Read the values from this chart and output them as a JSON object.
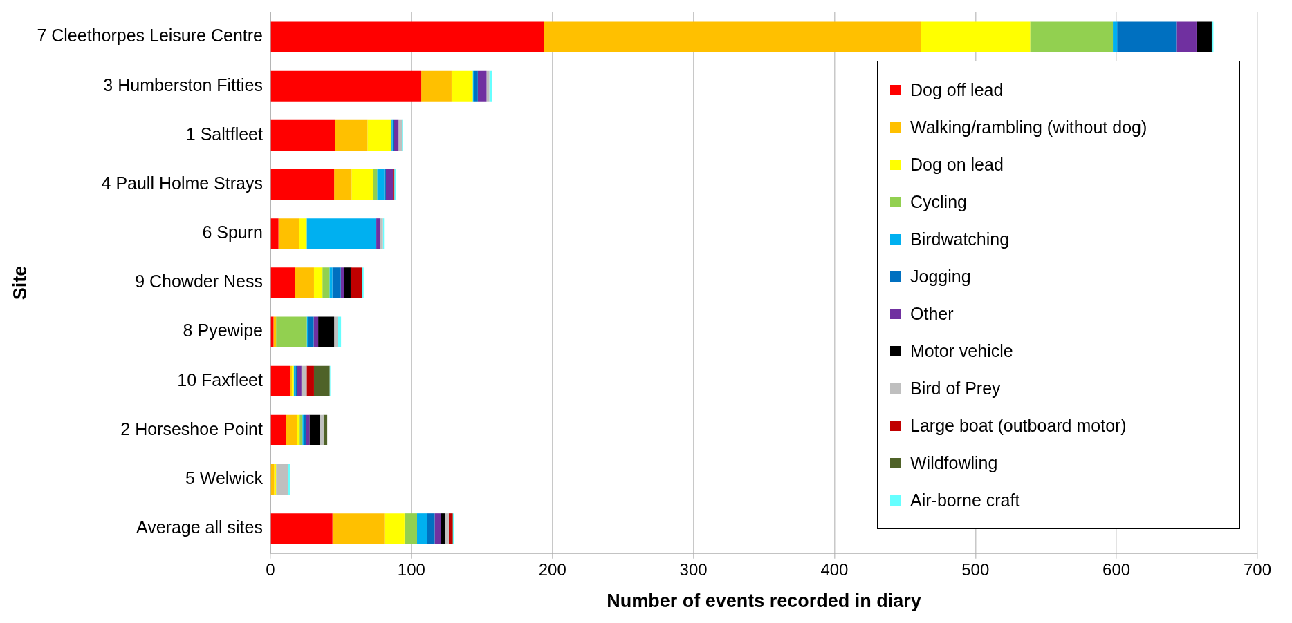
{
  "chart_data": {
    "type": "bar",
    "orientation": "horizontal",
    "stacked": true,
    "xlabel": "Number of events recorded in diary",
    "ylabel": "Site",
    "categories": [
      "7 Cleethorpes Leisure Centre",
      "3 Humberston Fitties",
      "1 Saltfleet",
      "4 Paull Holme Strays",
      "6 Spurn",
      "9 Chowder Ness",
      "8 Pyewipe",
      "10 Faxfleet",
      "2 Horseshoe Point",
      "5 Welwick",
      "Average all sites"
    ],
    "series": [
      {
        "name": "Dog off lead",
        "color": "#ff0000",
        "values": [
          194,
          107,
          45.7,
          45.2,
          5.7,
          17.6,
          2.2,
          14,
          10.9,
          0,
          44
        ]
      },
      {
        "name": "Walking/rambling (without dog)",
        "color": "#ffc000",
        "values": [
          267.5,
          21.5,
          23.2,
          12.4,
          14.5,
          13.3,
          1.8,
          1.2,
          8.1,
          2.7,
          36.8
        ]
      },
      {
        "name": "Dog on lead",
        "color": "#ffff00",
        "values": [
          77.3,
          15,
          17,
          15.1,
          5.5,
          6,
          0,
          1.3,
          1.7,
          1.3,
          14.3
        ]
      },
      {
        "name": "Cycling",
        "color": "#92d050",
        "values": [
          58.7,
          0,
          0,
          3,
          0,
          5,
          21.8,
          0,
          2,
          0,
          8.9
        ]
      },
      {
        "name": "Birdwatching",
        "color": "#00b0f0",
        "values": [
          3,
          1.2,
          0.7,
          5,
          49.4,
          2,
          1.2,
          1.3,
          1.3,
          0,
          7.1
        ]
      },
      {
        "name": "Jogging",
        "color": "#0070c0",
        "values": [
          42.3,
          2.4,
          0.8,
          1.2,
          0,
          6,
          3.7,
          1.3,
          1.2,
          0,
          5.4
        ]
      },
      {
        "name": "Other",
        "color": "#7030a0",
        "values": [
          14,
          6.2,
          3.5,
          5,
          2.7,
          2.5,
          3.2,
          2.9,
          2.5,
          0,
          4.5
        ]
      },
      {
        "name": "Motor vehicle",
        "color": "#000000",
        "values": [
          10.8,
          0,
          0,
          0,
          0,
          4.5,
          11.3,
          0,
          7.4,
          0,
          3
        ]
      },
      {
        "name": "Bird of Prey",
        "color": "#bfbfbf",
        "values": [
          0,
          2,
          2.4,
          null,
          2,
          null,
          2.5,
          3.7,
          2.5,
          8.7,
          2.5
        ]
      },
      {
        "name": "Large boat (outboard motor)",
        "color": "#c00000",
        "values": [
          0,
          0,
          0,
          1,
          0,
          8.2,
          0,
          5.2,
          0,
          0,
          2.7
        ]
      },
      {
        "name": "Wildfowling",
        "color": "#4f6228",
        "values": [
          0,
          0,
          0,
          0,
          0,
          0,
          0,
          11.1,
          2.7,
          0,
          0.3
        ]
      },
      {
        "name": "Air-borne craft",
        "color": "#66ffff",
        "values": [
          1.2,
          1.8,
          0.8,
          1.3,
          0.8,
          1,
          2.4,
          0.5,
          0,
          1.2,
          0.5
        ]
      }
    ],
    "xlim": [
      0,
      700
    ],
    "xticks": [
      0,
      100,
      200,
      300,
      400,
      500,
      600,
      700
    ],
    "grid": "x",
    "legend": "right"
  }
}
